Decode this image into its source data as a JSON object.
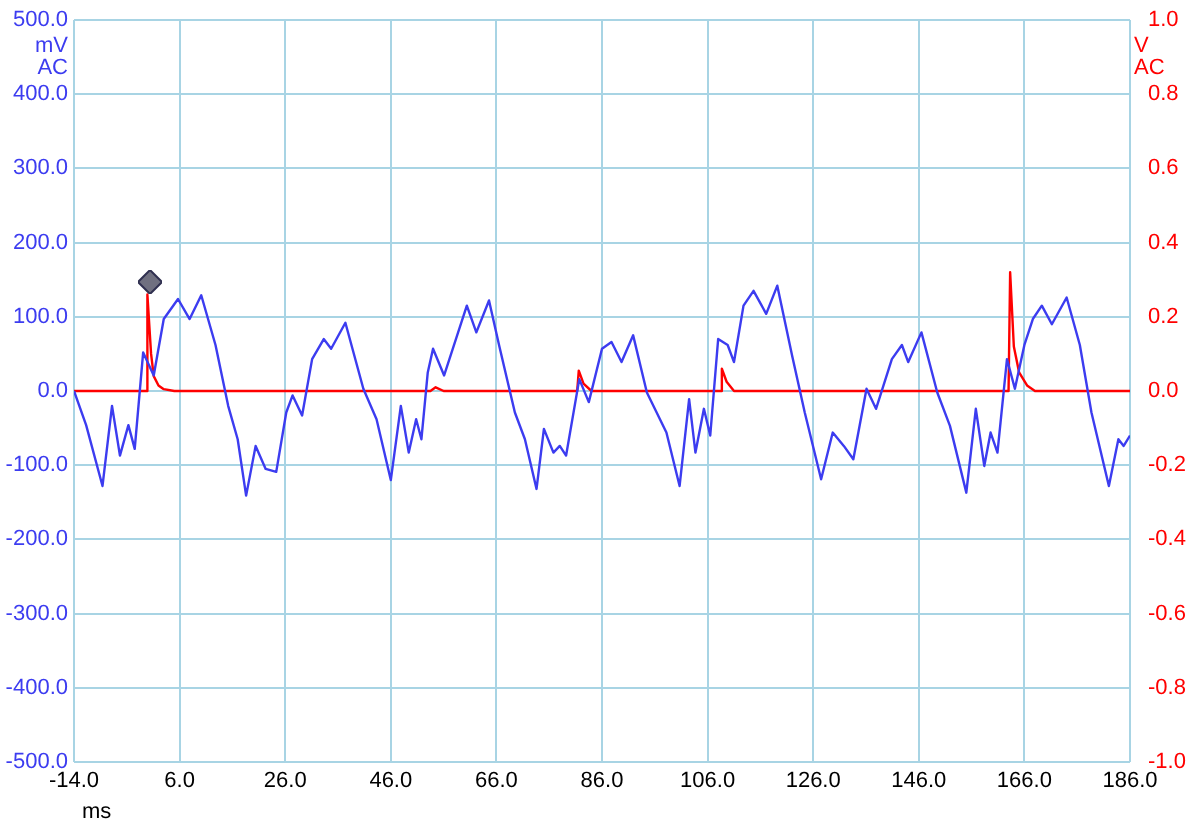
{
  "chart_data": {
    "type": "line",
    "xlabel": "ms",
    "ylabel": "mV AC",
    "y2label": "V AC",
    "xlim": [
      -14,
      186
    ],
    "xticks": [
      {
        "value": -14,
        "label": "-14.0"
      },
      {
        "value": 6,
        "label": "6.0"
      },
      {
        "value": 26,
        "label": "26.0"
      },
      {
        "value": 46,
        "label": "46.0"
      },
      {
        "value": 66,
        "label": "66.0"
      },
      {
        "value": 86,
        "label": "86.0"
      },
      {
        "value": 106,
        "label": "106.0"
      },
      {
        "value": 126,
        "label": "126.0"
      },
      {
        "value": 146,
        "label": "146.0"
      },
      {
        "value": 166,
        "label": "166.0"
      },
      {
        "value": 186,
        "label": "186.0"
      }
    ],
    "ylim": [
      -500,
      500
    ],
    "yticks": [
      {
        "value": -500,
        "label": "-500.0"
      },
      {
        "value": -400,
        "label": "-400.0"
      },
      {
        "value": -300,
        "label": "-300.0"
      },
      {
        "value": -200,
        "label": "-200.0"
      },
      {
        "value": -100,
        "label": "-100.0"
      },
      {
        "value": 0,
        "label": "0.0"
      },
      {
        "value": 100,
        "label": "100.0"
      },
      {
        "value": 200,
        "label": "200.0"
      },
      {
        "value": 300,
        "label": "300.0"
      },
      {
        "value": 400,
        "label": "400.0"
      },
      {
        "value": 500,
        "label": "500.0"
      }
    ],
    "y2lim": [
      -1,
      1
    ],
    "y2ticks": [
      {
        "value": -1,
        "label": "-1.0"
      },
      {
        "value": -0.8,
        "label": "-0.8"
      },
      {
        "value": -0.6,
        "label": "-0.6"
      },
      {
        "value": -0.4,
        "label": "-0.4"
      },
      {
        "value": -0.2,
        "label": "-0.2"
      },
      {
        "value": 0,
        "label": "0.0"
      },
      {
        "value": 0.2,
        "label": "0.2"
      },
      {
        "value": 0.4,
        "label": "0.4"
      },
      {
        "value": 0.6,
        "label": "0.6"
      },
      {
        "value": 0.8,
        "label": "0.8"
      },
      {
        "value": 1,
        "label": "1.0"
      }
    ],
    "grid": true,
    "series": [
      {
        "color": "#3c3cf0",
        "x": [
          -14,
          -11.7,
          -8.6,
          -6.8,
          -5.3,
          -3.7,
          -2.5,
          -0.9,
          1.1,
          3.0,
          5.7,
          7.9,
          10.1,
          12.8,
          15.2,
          17.0,
          18.6,
          20.4,
          22.3,
          24.3,
          26.2,
          27.4,
          29.2,
          31.1,
          33.3,
          34.7,
          37.4,
          40.8,
          43.3,
          46,
          47.9,
          49.4,
          50.8,
          51.8,
          53.0,
          54.0,
          56.1,
          60.4,
          62.2,
          64.6,
          66.5,
          69.5,
          71.4,
          73.6,
          75.0,
          76.8,
          78.0,
          79.2,
          81.7,
          83.5,
          86.0,
          87.8,
          89.7,
          91.9,
          94.5,
          98.2,
          100.7,
          102.5,
          103.7,
          105.3,
          106.5,
          108.0,
          109.8,
          111.0,
          112.8,
          114.7,
          117.1,
          119.2,
          122.0,
          124.4,
          127.5,
          129.7,
          131.8,
          133.6,
          136.1,
          137.9,
          140.9,
          142.8,
          144.0,
          146.5,
          149.5,
          151.9,
          155.0,
          156.8,
          158.4,
          159.6,
          160.9,
          162.7,
          164.2,
          166.0,
          167.6,
          169.3,
          171.2,
          174.0,
          176.5,
          178.7,
          182.0,
          183.8,
          184.8,
          186
        ],
        "values": [
          0,
          -46,
          -128,
          -20,
          -87,
          -46,
          -78,
          52,
          21,
          97,
          124,
          97,
          129,
          62,
          -20,
          -65,
          -141,
          -74,
          -105,
          -109,
          -29,
          -6,
          -33,
          43,
          70,
          57,
          92,
          3,
          -38,
          -120,
          -20,
          -83,
          -38,
          -65,
          25,
          57,
          21,
          115,
          79,
          122,
          62,
          -29,
          -65,
          -132,
          -51,
          -83,
          -74,
          -87,
          16,
          -15,
          57,
          66,
          39,
          75,
          -2,
          -56,
          -128,
          -11,
          -83,
          -24,
          -60,
          70,
          62,
          39,
          115,
          135,
          104,
          142,
          48,
          -29,
          -119,
          -56,
          -74,
          -92,
          3,
          -24,
          43,
          62,
          39,
          79,
          -2,
          -47,
          -137,
          -24,
          -101,
          -56,
          -83,
          43,
          3,
          62,
          97,
          115,
          90,
          126,
          62,
          -29,
          -128,
          -65,
          -74,
          -60
        ]
      },
      {
        "color": "#ff0000",
        "axis": "y2",
        "x": [
          -14,
          -0.3,
          -0.1,
          0.6,
          1.1,
          2.0,
          3.0,
          5,
          53.5,
          54.5,
          56,
          81.3,
          81.6,
          82.5,
          84,
          108.4,
          108.7,
          109.6,
          111,
          163.0,
          163.3,
          164.0,
          165,
          166.5,
          168,
          186
        ],
        "values": [
          0,
          0,
          0.26,
          0.1,
          0.04,
          0.015,
          0.005,
          0,
          0,
          0.01,
          0,
          0,
          0.055,
          0.02,
          0,
          0,
          0.06,
          0.025,
          0,
          0,
          0.32,
          0.12,
          0.05,
          0.015,
          0,
          0
        ]
      }
    ]
  }
}
